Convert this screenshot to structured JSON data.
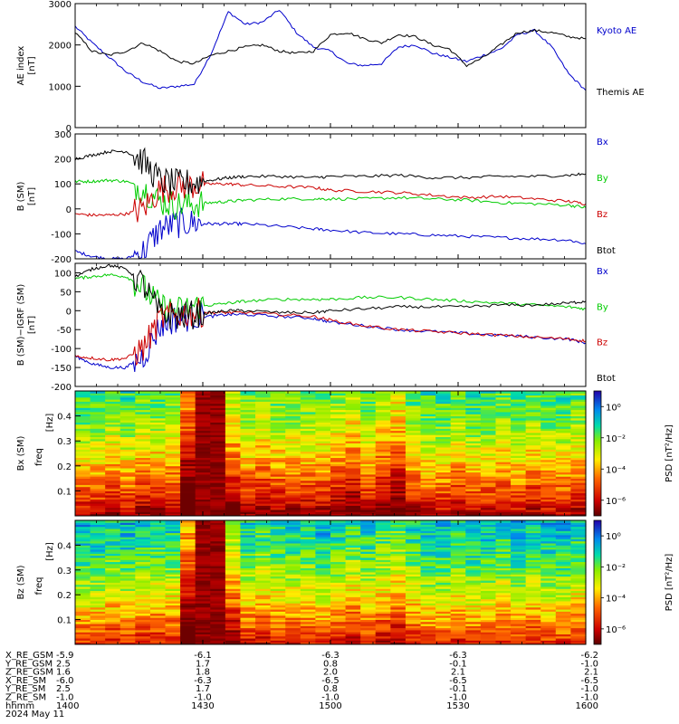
{
  "chart_data": [
    {
      "type": "line",
      "id": "ae",
      "ylabel": "AE index",
      "yunit": "[nT]",
      "ylim": [
        0,
        3000
      ],
      "yticks": [
        "0",
        "1000",
        "2000",
        "3000"
      ],
      "x_time_range": [
        "1400",
        "1600"
      ],
      "series": [
        {
          "name": "Kyoto AE",
          "color": "#0000cc",
          "x": [
            1400,
            1404,
            1408,
            1412,
            1416,
            1420,
            1424,
            1428,
            1432,
            1436,
            1440,
            1444,
            1448,
            1452,
            1456,
            1500,
            1504,
            1508,
            1512,
            1516,
            1520,
            1524,
            1528,
            1532,
            1536,
            1540,
            1544,
            1548,
            1552,
            1556,
            1600
          ],
          "values": [
            2450,
            2050,
            1700,
            1350,
            1100,
            950,
            1000,
            1050,
            1800,
            2800,
            2500,
            2550,
            2850,
            2300,
            1950,
            1850,
            1550,
            1500,
            1550,
            1950,
            2000,
            1800,
            1700,
            1600,
            1750,
            1900,
            2250,
            2350,
            1950,
            1300,
            900
          ]
        },
        {
          "name": "Themis AE",
          "color": "#000000",
          "x": [
            1400,
            1404,
            1408,
            1412,
            1416,
            1420,
            1424,
            1428,
            1432,
            1436,
            1440,
            1444,
            1448,
            1452,
            1456,
            1500,
            1504,
            1508,
            1512,
            1516,
            1520,
            1524,
            1528,
            1532,
            1536,
            1540,
            1544,
            1548,
            1552,
            1556,
            1600
          ],
          "values": [
            2300,
            1850,
            1750,
            1850,
            2050,
            1850,
            1600,
            1550,
            1750,
            1850,
            1950,
            2000,
            1850,
            1800,
            1850,
            2250,
            2300,
            2150,
            2050,
            2250,
            2200,
            2000,
            1900,
            1500,
            1700,
            2000,
            2300,
            2350,
            2300,
            2200,
            2150
          ]
        }
      ]
    },
    {
      "type": "line",
      "id": "bsm",
      "ylabel": "B (SM)",
      "yunit": "[nT]",
      "ylim": [
        -200,
        300
      ],
      "yticks": [
        "-200",
        "-100",
        "0",
        "100",
        "200",
        "300"
      ],
      "series": [
        {
          "name": "Bx",
          "color": "#0000cc",
          "x": [
            1400,
            1404,
            1408,
            1412,
            1416,
            1420,
            1424,
            1428,
            1432,
            1436,
            1440,
            1448,
            1456,
            1500,
            1508,
            1516,
            1524,
            1532,
            1540,
            1548,
            1556,
            1600
          ],
          "values": [
            -170,
            -190,
            -200,
            -200,
            -170,
            -80,
            -60,
            -55,
            -60,
            -60,
            -60,
            -70,
            -80,
            -85,
            -95,
            -100,
            -105,
            -110,
            -115,
            -120,
            -125,
            -140
          ]
        },
        {
          "name": "By",
          "color": "#00cc00",
          "x": [
            1400,
            1404,
            1408,
            1412,
            1416,
            1420,
            1424,
            1428,
            1432,
            1436,
            1440,
            1448,
            1456,
            1500,
            1508,
            1516,
            1524,
            1532,
            1540,
            1548,
            1556,
            1600
          ],
          "values": [
            110,
            110,
            115,
            110,
            80,
            30,
            15,
            20,
            25,
            30,
            35,
            40,
            40,
            40,
            40,
            45,
            40,
            35,
            25,
            20,
            15,
            5
          ]
        },
        {
          "name": "Bz",
          "color": "#cc0000",
          "x": [
            1400,
            1404,
            1408,
            1412,
            1416,
            1420,
            1424,
            1428,
            1432,
            1436,
            1440,
            1448,
            1456,
            1500,
            1508,
            1516,
            1524,
            1532,
            1540,
            1548,
            1556,
            1600
          ],
          "values": [
            -20,
            -25,
            -25,
            -20,
            0,
            80,
            90,
            95,
            100,
            100,
            95,
            90,
            85,
            75,
            70,
            65,
            55,
            45,
            50,
            40,
            30,
            20
          ]
        },
        {
          "name": "Btot",
          "color": "#000000",
          "x": [
            1400,
            1404,
            1408,
            1412,
            1416,
            1420,
            1424,
            1428,
            1432,
            1436,
            1440,
            1448,
            1456,
            1500,
            1508,
            1516,
            1524,
            1532,
            1540,
            1548,
            1556,
            1600
          ],
          "values": [
            200,
            215,
            230,
            230,
            190,
            110,
            100,
            105,
            115,
            125,
            130,
            130,
            125,
            130,
            130,
            135,
            125,
            125,
            130,
            130,
            135,
            140
          ]
        }
      ]
    },
    {
      "type": "line",
      "id": "dbsm",
      "ylabel": "B (SM)−IGRF (SM)",
      "yunit": "[nT]",
      "ylim": [
        -200,
        125
      ],
      "yticks": [
        "-200",
        "-150",
        "-100",
        "-50",
        "0",
        "50",
        "100"
      ],
      "series": [
        {
          "name": "Bx",
          "color": "#0000cc",
          "x": [
            1400,
            1404,
            1408,
            1412,
            1416,
            1420,
            1424,
            1428,
            1432,
            1436,
            1440,
            1448,
            1456,
            1500,
            1508,
            1516,
            1524,
            1532,
            1540,
            1548,
            1556,
            1600
          ],
          "values": [
            -120,
            -140,
            -150,
            -150,
            -120,
            -40,
            -20,
            -15,
            -15,
            -10,
            -10,
            -15,
            -20,
            -30,
            -40,
            -50,
            -55,
            -60,
            -65,
            -70,
            -75,
            -85
          ]
        },
        {
          "name": "By",
          "color": "#00cc00",
          "x": [
            1400,
            1404,
            1408,
            1412,
            1416,
            1420,
            1424,
            1428,
            1432,
            1436,
            1440,
            1448,
            1456,
            1500,
            1508,
            1516,
            1524,
            1532,
            1540,
            1548,
            1556,
            1600
          ],
          "values": [
            85,
            90,
            95,
            90,
            60,
            10,
            0,
            10,
            15,
            20,
            25,
            30,
            30,
            30,
            35,
            35,
            30,
            25,
            20,
            15,
            10,
            5
          ]
        },
        {
          "name": "Bz",
          "color": "#cc0000",
          "x": [
            1400,
            1404,
            1408,
            1412,
            1416,
            1420,
            1424,
            1428,
            1432,
            1436,
            1440,
            1448,
            1456,
            1500,
            1508,
            1516,
            1524,
            1532,
            1540,
            1548,
            1556,
            1600
          ],
          "values": [
            -120,
            -125,
            -130,
            -125,
            -100,
            -20,
            -10,
            -5,
            -5,
            -5,
            -5,
            -10,
            -15,
            -25,
            -40,
            -50,
            -55,
            -60,
            -65,
            -70,
            -75,
            -80
          ]
        },
        {
          "name": "Btot",
          "color": "#000000",
          "x": [
            1400,
            1404,
            1408,
            1412,
            1416,
            1420,
            1424,
            1428,
            1432,
            1436,
            1440,
            1448,
            1456,
            1500,
            1508,
            1516,
            1524,
            1532,
            1540,
            1548,
            1556,
            1600
          ],
          "values": [
            90,
            110,
            120,
            110,
            70,
            -10,
            -15,
            -10,
            -5,
            0,
            0,
            -5,
            -5,
            0,
            5,
            10,
            10,
            10,
            15,
            15,
            20,
            25
          ]
        }
      ]
    },
    {
      "type": "heatmap",
      "id": "bx_psd",
      "ylabel": "Bx (SM)",
      "ylabel2": "freq",
      "yunit": "[Hz]",
      "ylim": [
        0,
        0.5
      ],
      "yticks": [
        "0.1",
        "0.2",
        "0.3",
        "0.4"
      ],
      "colorbar_label": "PSD [nT²/Hz]",
      "colorbar_ticks": [
        "10⁰",
        "10⁻²",
        "10⁻⁴",
        "10⁻⁶"
      ],
      "colorbar_log_range": [
        -7,
        1
      ],
      "column_intensity": [
        0.55,
        0.55,
        0.6,
        0.55,
        0.6,
        0.6,
        0.6,
        0.9,
        1.0,
        1.0,
        0.7,
        0.6,
        0.65,
        0.6,
        0.6,
        0.6,
        0.6,
        0.65,
        0.7,
        0.6,
        0.7,
        0.75,
        0.6,
        0.55,
        0.55,
        0.6,
        0.55,
        0.55,
        0.6,
        0.55,
        0.6,
        0.55,
        0.55,
        0.6
      ]
    },
    {
      "type": "heatmap",
      "id": "bz_psd",
      "ylabel": "Bz (SM)",
      "ylabel2": "freq",
      "yunit": "[Hz]",
      "ylim": [
        0,
        0.5
      ],
      "yticks": [
        "0.1",
        "0.2",
        "0.3",
        "0.4"
      ],
      "colorbar_label": "PSD [nT²/Hz]",
      "colorbar_ticks": [
        "10⁰",
        "10⁻²",
        "10⁻⁴",
        "10⁻⁶"
      ],
      "colorbar_log_range": [
        -7,
        1
      ],
      "column_intensity": [
        0.45,
        0.45,
        0.5,
        0.45,
        0.5,
        0.5,
        0.5,
        0.85,
        1.0,
        1.0,
        0.65,
        0.5,
        0.55,
        0.5,
        0.5,
        0.5,
        0.45,
        0.5,
        0.55,
        0.5,
        0.55,
        0.6,
        0.5,
        0.45,
        0.45,
        0.5,
        0.45,
        0.45,
        0.5,
        0.45,
        0.5,
        0.45,
        0.45,
        0.5
      ]
    }
  ],
  "ephemeris": {
    "row_labels": [
      "X_RE_GSM",
      "Y_RE_GSM",
      "Z_RE_GSM",
      "X_RE_SM",
      "Y_RE_SM",
      "Z_RE_SM",
      "hhmm",
      "2024 May 11"
    ],
    "columns": [
      [
        "-5.9",
        "2.5",
        "1.6",
        "-6.0",
        "2.5",
        "-1.0",
        "1400"
      ],
      [
        "-6.1",
        "1.7",
        "1.8",
        "-6.3",
        "1.7",
        "-1.0",
        "1430"
      ],
      [
        "-6.3",
        "0.8",
        "2.0",
        "-6.5",
        "0.8",
        "-1.0",
        "1500"
      ],
      [
        "-6.3",
        "-0.1",
        "2.1",
        "-6.5",
        "-0.1",
        "-1.0",
        "1530"
      ],
      [
        "-6.2",
        "-1.0",
        "2.1",
        "-6.5",
        "-1.0",
        "-1.0",
        "1600"
      ]
    ]
  }
}
